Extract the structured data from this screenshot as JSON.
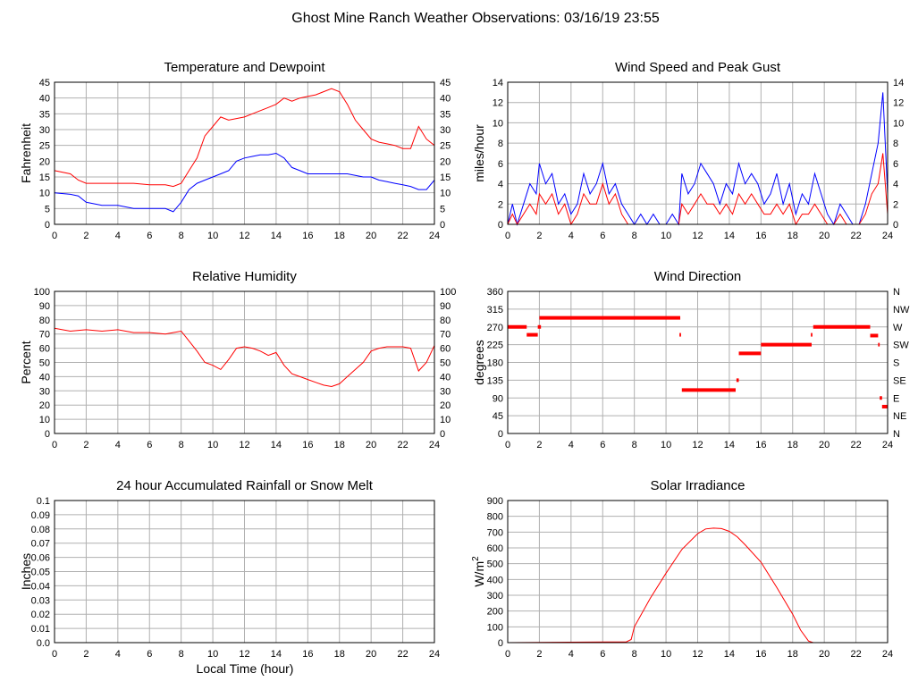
{
  "page": {
    "title": "Ghost Mine Ranch Weather Observations: 03/16/19 23:55",
    "xlabel": "Local Time (hour)"
  },
  "colors": {
    "red": "#ff0000",
    "blue": "#0000ff",
    "grid": "#b0b0b0"
  },
  "chart_data": [
    {
      "id": "temp",
      "type": "line",
      "title": "Temperature and Dewpoint",
      "ylabel": "Fahrenheit",
      "xlim": [
        0,
        24
      ],
      "ylim": [
        0,
        45
      ],
      "xticks": [
        0,
        2,
        4,
        6,
        8,
        10,
        12,
        14,
        16,
        18,
        20,
        22,
        24
      ],
      "yticks": [
        0,
        5,
        10,
        15,
        20,
        25,
        30,
        35,
        40,
        45
      ],
      "right_ticks": [
        "0",
        "5",
        "10",
        "15",
        "20",
        "25",
        "30",
        "35",
        "40",
        "45"
      ],
      "series": [
        {
          "color": "#ff0000",
          "x": [
            0,
            1,
            1.5,
            2,
            3,
            4,
            5,
            6,
            7,
            7.5,
            8,
            8.5,
            9,
            9.5,
            10,
            10.5,
            11,
            11.5,
            12,
            12.5,
            13,
            13.5,
            14,
            14.5,
            15,
            15.5,
            16,
            16.5,
            17,
            17.5,
            18,
            18.5,
            19,
            19.5,
            20,
            20.5,
            21,
            21.5,
            22,
            22.5,
            23,
            23.5,
            24
          ],
          "y": [
            17,
            16,
            14,
            13,
            13,
            13,
            13,
            12.5,
            12.5,
            12,
            13,
            17,
            21,
            28,
            31,
            34,
            33,
            33.5,
            34,
            35,
            36,
            37,
            38,
            40,
            39,
            40,
            40.5,
            41,
            42,
            43,
            42,
            38,
            33,
            30,
            27,
            26,
            25.5,
            25,
            24,
            24,
            31,
            27,
            25
          ]
        },
        {
          "color": "#0000ff",
          "x": [
            0,
            1,
            1.5,
            2,
            3,
            4,
            5,
            6,
            7,
            7.5,
            8,
            8.5,
            9,
            9.5,
            10,
            10.5,
            11,
            11.5,
            12,
            12.5,
            13,
            13.5,
            14,
            14.5,
            15,
            15.5,
            16,
            16.5,
            17,
            17.5,
            18,
            18.5,
            19,
            19.5,
            20,
            20.5,
            21,
            21.5,
            22,
            22.5,
            23,
            23.5,
            24
          ],
          "y": [
            10,
            9.5,
            9,
            7,
            6,
            6,
            5,
            5,
            5,
            4,
            7,
            11,
            13,
            14,
            15,
            16,
            17,
            20,
            21,
            21.5,
            22,
            22,
            22.5,
            21,
            18,
            17,
            16,
            16,
            16,
            16,
            16,
            16,
            15.5,
            15,
            15,
            14,
            13.5,
            13,
            12.5,
            12,
            11,
            11,
            14
          ]
        }
      ]
    },
    {
      "id": "wind",
      "type": "line",
      "title": "Wind Speed and Peak Gust",
      "ylabel": "miles/hour",
      "xlim": [
        0,
        24
      ],
      "ylim": [
        0,
        14
      ],
      "xticks": [
        0,
        2,
        4,
        6,
        8,
        10,
        12,
        14,
        16,
        18,
        20,
        22,
        24
      ],
      "yticks": [
        0,
        2,
        4,
        6,
        8,
        10,
        12,
        14
      ],
      "right_ticks": [
        "0",
        "2",
        "4",
        "6",
        "8",
        "10",
        "12",
        "14"
      ],
      "series": [
        {
          "color": "#0000ff",
          "x": [
            0,
            0.3,
            0.6,
            1,
            1.4,
            1.8,
            2,
            2.4,
            2.8,
            3.2,
            3.6,
            4,
            4.4,
            4.8,
            5.2,
            5.6,
            6,
            6.4,
            6.8,
            7.2,
            7.6,
            8,
            8.4,
            8.8,
            9.2,
            9.6,
            10,
            10.4,
            10.8,
            11,
            11.4,
            11.8,
            12.2,
            12.6,
            13,
            13.4,
            13.8,
            14.2,
            14.6,
            15,
            15.4,
            15.8,
            16.2,
            16.6,
            17,
            17.4,
            17.8,
            18.2,
            18.6,
            19,
            19.4,
            19.8,
            20.2,
            20.6,
            21,
            21.4,
            21.8,
            22.2,
            22.6,
            23,
            23.4,
            23.7,
            24
          ],
          "y": [
            0,
            2,
            0,
            2,
            4,
            3,
            6,
            4,
            5,
            2,
            3,
            1,
            2,
            5,
            3,
            4,
            6,
            3,
            4,
            2,
            1,
            0,
            1,
            0,
            1,
            0,
            0,
            1,
            0,
            5,
            3,
            4,
            6,
            5,
            4,
            2,
            4,
            3,
            6,
            4,
            5,
            4,
            2,
            3,
            5,
            2,
            4,
            1,
            3,
            2,
            5,
            3,
            1,
            0,
            2,
            1,
            0,
            0,
            2,
            5,
            8,
            13,
            3
          ]
        },
        {
          "color": "#ff0000",
          "x": [
            0,
            0.3,
            0.6,
            1,
            1.4,
            1.8,
            2,
            2.4,
            2.8,
            3.2,
            3.6,
            4,
            4.4,
            4.8,
            5.2,
            5.6,
            6,
            6.4,
            6.8,
            7.2,
            7.6,
            8,
            8.4,
            8.8,
            9.2,
            9.6,
            10,
            10.4,
            10.8,
            11,
            11.4,
            11.8,
            12.2,
            12.6,
            13,
            13.4,
            13.8,
            14.2,
            14.6,
            15,
            15.4,
            15.8,
            16.2,
            16.6,
            17,
            17.4,
            17.8,
            18.2,
            18.6,
            19,
            19.4,
            19.8,
            20.2,
            20.6,
            21,
            21.4,
            21.8,
            22.2,
            22.6,
            23,
            23.4,
            23.7,
            24
          ],
          "y": [
            0,
            1,
            0,
            1,
            2,
            1,
            3,
            2,
            3,
            1,
            2,
            0,
            1,
            3,
            2,
            2,
            4,
            2,
            3,
            1,
            0,
            0,
            0,
            0,
            0,
            0,
            0,
            0,
            0,
            2,
            1,
            2,
            3,
            2,
            2,
            1,
            2,
            1,
            3,
            2,
            3,
            2,
            1,
            1,
            2,
            1,
            2,
            0,
            1,
            1,
            2,
            1,
            0,
            0,
            1,
            0,
            0,
            0,
            1,
            3,
            4,
            7,
            1
          ]
        }
      ]
    },
    {
      "id": "rh",
      "type": "line",
      "title": "Relative Humidity",
      "ylabel": "Percent",
      "xlim": [
        0,
        24
      ],
      "ylim": [
        0,
        100
      ],
      "xticks": [
        0,
        2,
        4,
        6,
        8,
        10,
        12,
        14,
        16,
        18,
        20,
        22,
        24
      ],
      "yticks": [
        0,
        10,
        20,
        30,
        40,
        50,
        60,
        70,
        80,
        90,
        100
      ],
      "right_ticks": [
        "0",
        "10",
        "20",
        "30",
        "40",
        "50",
        "60",
        "70",
        "80",
        "90",
        "100"
      ],
      "series": [
        {
          "color": "#ff0000",
          "x": [
            0,
            1,
            2,
            3,
            4,
            5,
            6,
            7,
            7.5,
            8,
            8.5,
            9,
            9.5,
            10,
            10.5,
            11,
            11.5,
            12,
            12.5,
            13,
            13.5,
            14,
            14.5,
            15,
            15.5,
            16,
            16.5,
            17,
            17.5,
            18,
            18.5,
            19,
            19.5,
            20,
            20.5,
            21,
            21.5,
            22,
            22.5,
            23,
            23.5,
            24
          ],
          "y": [
            74,
            72,
            73,
            72,
            73,
            71,
            71,
            70,
            71,
            72,
            65,
            58,
            50,
            48,
            45,
            52,
            60,
            61,
            60,
            58,
            55,
            57,
            48,
            42,
            40,
            38,
            36,
            34,
            33,
            35,
            40,
            45,
            50,
            58,
            60,
            61,
            61,
            61,
            60,
            44,
            50,
            62
          ]
        }
      ]
    },
    {
      "id": "wdir",
      "type": "scatter",
      "title": "Wind Direction",
      "ylabel": "degrees",
      "xlim": [
        0,
        24
      ],
      "ylim": [
        0,
        360
      ],
      "xticks": [
        0,
        2,
        4,
        6,
        8,
        10,
        12,
        14,
        16,
        18,
        20,
        22,
        24
      ],
      "yticks": [
        0,
        45,
        90,
        135,
        180,
        225,
        270,
        315,
        360
      ],
      "right_ticks": [
        "N",
        "NE",
        "E",
        "SE",
        "S",
        "SW",
        "W",
        "NW",
        "N"
      ],
      "segments": [
        {
          "x0": 0,
          "x1": 1.2,
          "y": 270
        },
        {
          "x0": 1.2,
          "x1": 1.9,
          "y": 250
        },
        {
          "x0": 1.9,
          "x1": 2.1,
          "y": 270
        },
        {
          "x0": 2.0,
          "x1": 10.9,
          "y": 293
        },
        {
          "x0": 10.85,
          "x1": 10.95,
          "y": 250
        },
        {
          "x0": 11.0,
          "x1": 14.4,
          "y": 110
        },
        {
          "x0": 14.45,
          "x1": 14.6,
          "y": 135
        },
        {
          "x0": 14.6,
          "x1": 16.0,
          "y": 203
        },
        {
          "x0": 16.0,
          "x1": 19.2,
          "y": 225
        },
        {
          "x0": 19.15,
          "x1": 19.25,
          "y": 250
        },
        {
          "x0": 19.3,
          "x1": 22.9,
          "y": 270
        },
        {
          "x0": 22.9,
          "x1": 23.4,
          "y": 248
        },
        {
          "x0": 23.4,
          "x1": 23.5,
          "y": 225
        },
        {
          "x0": 23.5,
          "x1": 23.65,
          "y": 90
        },
        {
          "x0": 23.65,
          "x1": 24.0,
          "y": 68
        }
      ]
    },
    {
      "id": "rain",
      "type": "line",
      "title": "24 hour Accumulated Rainfall or Snow Melt",
      "ylabel": "Inches",
      "xlim": [
        0,
        24
      ],
      "ylim": [
        0,
        0.1
      ],
      "xticks": [
        0,
        2,
        4,
        6,
        8,
        10,
        12,
        14,
        16,
        18,
        20,
        22,
        24
      ],
      "yticks": [
        0,
        0.01,
        0.02,
        0.03,
        0.04,
        0.05,
        0.06,
        0.07,
        0.08,
        0.09,
        0.1
      ],
      "ytick_labels": [
        "0.0",
        "0.01",
        "0.02",
        "0.03",
        "0.04",
        "0.05",
        "0.06",
        "0.07",
        "0.08",
        "0.09",
        "0.1"
      ],
      "series": [
        {
          "color": "#ff0000",
          "x": [
            0,
            24
          ],
          "y": [
            0,
            0
          ]
        }
      ]
    },
    {
      "id": "solar",
      "type": "line",
      "title": "Solar Irradiance",
      "ylabel": "W/m²",
      "xlim": [
        0,
        24
      ],
      "ylim": [
        0,
        900
      ],
      "xticks": [
        0,
        2,
        4,
        6,
        8,
        10,
        12,
        14,
        16,
        18,
        20,
        22,
        24
      ],
      "yticks": [
        0,
        100,
        200,
        300,
        400,
        500,
        600,
        700,
        800,
        900
      ],
      "series": [
        {
          "color": "#ff0000",
          "x": [
            0,
            7.5,
            7.8,
            8,
            9,
            10,
            11,
            12,
            12.5,
            13,
            13.5,
            14,
            14.5,
            15,
            16,
            17,
            18,
            18.5,
            19,
            19.3,
            24
          ],
          "y": [
            0,
            5,
            20,
            100,
            280,
            440,
            590,
            690,
            720,
            725,
            722,
            705,
            670,
            620,
            510,
            350,
            180,
            80,
            10,
            0,
            0
          ]
        }
      ]
    }
  ]
}
